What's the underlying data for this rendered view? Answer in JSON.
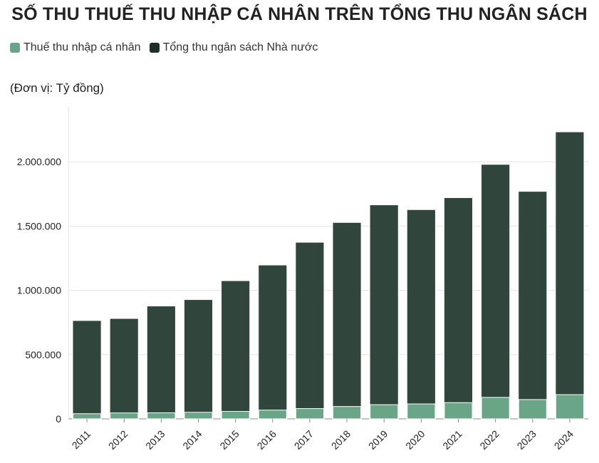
{
  "title": "SỐ THU THUẾ THU NHẬP CÁ NHÂN TRÊN TỔNG THU NGÂN SÁCH",
  "unit_label": "(Đơn vị: Tỷ đồng)",
  "colors": {
    "pit": "#6aa587",
    "total": "#30453b"
  },
  "chart_data": {
    "type": "bar",
    "stacking": "overlay",
    "categories": [
      "2011",
      "2012",
      "2013",
      "2014",
      "2015",
      "2016",
      "2017",
      "2018",
      "2019",
      "2020",
      "2021",
      "2022",
      "2023",
      "2024"
    ],
    "series": [
      {
        "name": "Thuế thu nhập cá nhân",
        "color": "#6aa587",
        "values": [
          40000,
          46000,
          47000,
          51000,
          58000,
          68000,
          80000,
          96000,
          110000,
          116000,
          126000,
          167000,
          150000,
          188000
        ]
      },
      {
        "name": "Tổng thu ngân sách Nhà nước",
        "color": "#30453b",
        "values": [
          765000,
          781000,
          878000,
          928000,
          1075000,
          1197000,
          1374000,
          1528000,
          1665000,
          1628000,
          1721000,
          1980000,
          1770000,
          2233000
        ]
      }
    ],
    "yticks": [
      0,
      500000,
      1000000,
      1500000,
      2000000
    ],
    "ytick_labels": [
      "0",
      "500.000",
      "1.000.000",
      "1.500.000",
      "2.000.000"
    ],
    "ylim": [
      0,
      2300000
    ],
    "grid": true,
    "legend_position": "top-left"
  }
}
